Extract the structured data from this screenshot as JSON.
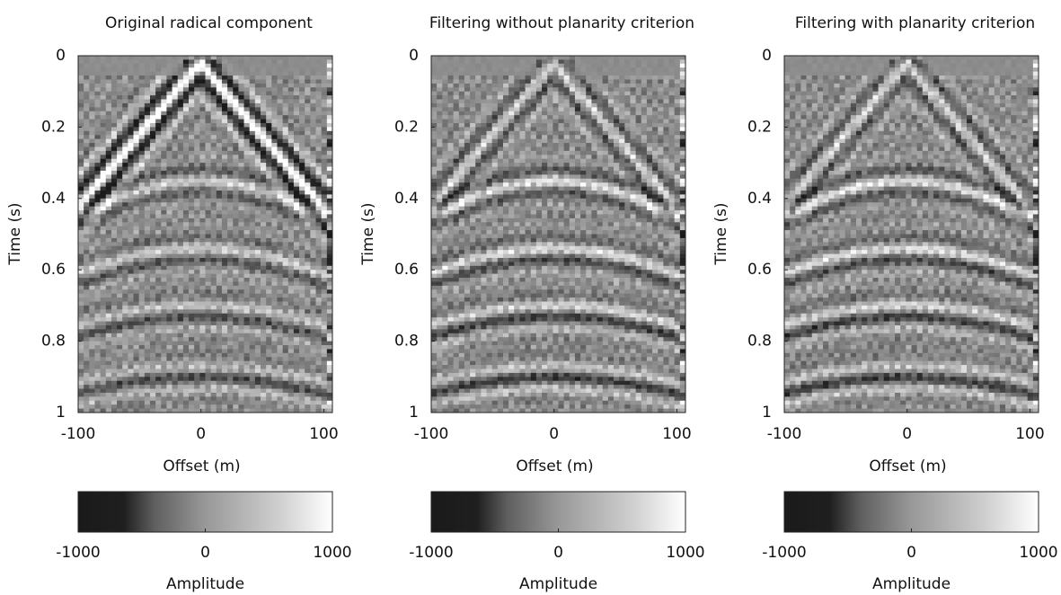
{
  "chart_data": [
    {
      "type": "image",
      "title": "Original radical component",
      "xlabel": "Offset (m)",
      "ylabel": "Time (s)",
      "xlim": [
        -100,
        107
      ],
      "xticks": [
        -100,
        0,
        100
      ],
      "ylim": [
        0,
        1
      ],
      "yticks": [
        0,
        0.2,
        0.4,
        0.6,
        0.8,
        1
      ],
      "colormap": [
        "#1a1a1a",
        "#ffffff"
      ],
      "colorbar": {
        "label": "Amplitude",
        "clim": [
          -1000,
          1000
        ],
        "ticks": [
          -1000,
          0,
          1000
        ]
      }
    },
    {
      "type": "image",
      "title": "Filtering without planarity criterion",
      "xlabel": "Offset (m)",
      "ylabel": "Time (s)",
      "xlim": [
        -100,
        107
      ],
      "xticks": [
        -100,
        0,
        100
      ],
      "ylim": [
        0,
        1
      ],
      "yticks": [
        0,
        0.2,
        0.4,
        0.6,
        0.8,
        1
      ],
      "colormap": [
        "#1a1a1a",
        "#ffffff"
      ],
      "colorbar": {
        "label": "Amplitude",
        "clim": [
          -1000,
          1000
        ],
        "ticks": [
          -1000,
          0,
          1000
        ]
      }
    },
    {
      "type": "image",
      "title": "Filtering with planarity criterion",
      "xlabel": "Offset (m)",
      "ylabel": "Time (s)",
      "xlim": [
        -100,
        107
      ],
      "xticks": [
        -100,
        0,
        100
      ],
      "ylim": [
        0,
        1
      ],
      "yticks": [
        0,
        0.2,
        0.4,
        0.6,
        0.8,
        1
      ],
      "colormap": [
        "#1a1a1a",
        "#ffffff"
      ],
      "colorbar": {
        "label": "Amplitude",
        "clim": [
          -1000,
          1000
        ],
        "ticks": [
          -1000,
          0,
          1000
        ]
      }
    }
  ]
}
